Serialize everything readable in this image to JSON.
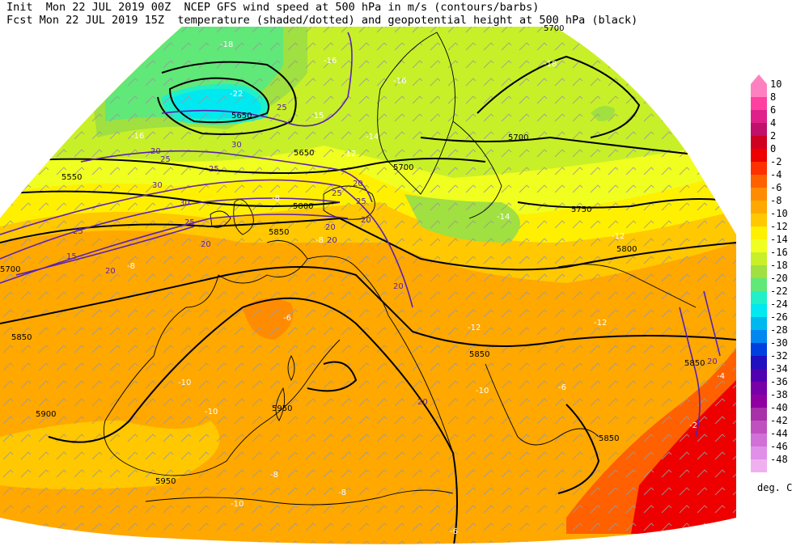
{
  "header": {
    "line1": "Init  Mon 22 JUL 2019 00Z  NCEP GFS wind speed at 500 hPa in m/s (contours/barbs)",
    "line2": "Fcst Mon 22 JUL 2019 15Z  temperature (shaded/dotted) and geopotential height at 500 hPa (black)"
  },
  "legend": {
    "labels": [
      "10",
      "8",
      "6",
      "4",
      "2",
      "0",
      "-2",
      "-4",
      "-6",
      "-8",
      "-10",
      "-12",
      "-14",
      "-16",
      "-18",
      "-20",
      "-22",
      "-24",
      "-26",
      "-28",
      "-30",
      "-32",
      "-34",
      "-36",
      "-38",
      "-40",
      "-42",
      "-44",
      "-46",
      "-48"
    ],
    "colors": [
      "#ff80c0",
      "#ff40a0",
      "#e0208a",
      "#c0106a",
      "#d00020",
      "#ee0000",
      "#ff3000",
      "#ff6000",
      "#ff8c00",
      "#ffa800",
      "#ffc800",
      "#fff000",
      "#f0ff20",
      "#c8f028",
      "#a0e040",
      "#60e878",
      "#20f0c8",
      "#00e8f0",
      "#00b8f0",
      "#0088f0",
      "#0040e0",
      "#2010c0",
      "#5000b0",
      "#7800a8",
      "#9000a0",
      "#a830a8",
      "#c050c0",
      "#d070d8",
      "#e090e8",
      "#f0b0f0"
    ],
    "units": "deg. C"
  },
  "map": {
    "height_labels": [
      "5700",
      "5550",
      "5650",
      "5700",
      "5700",
      "5700",
      "5750",
      "5800",
      "5850",
      "5800",
      "5850",
      "5900",
      "5950",
      "5950",
      "5850",
      "5850",
      "5850",
      "5650"
    ],
    "temp_labels": [
      "-18",
      "-22",
      "-16",
      "-16",
      "-15",
      "-16",
      "-18",
      "-14",
      "-12",
      "-14",
      "-12",
      "-8",
      "-6",
      "-8",
      "-10",
      "-10",
      "-10",
      "-8",
      "-8",
      "-6",
      "-4",
      "-2",
      "-6",
      "-8",
      "-12",
      "-10",
      "-12"
    ],
    "wind_labels": [
      "25",
      "20",
      "30",
      "25",
      "30",
      "25",
      "30",
      "25",
      "20",
      "25",
      "15",
      "20",
      "25",
      "20",
      "20",
      "20",
      "20",
      "20",
      "20",
      "25",
      "20"
    ]
  }
}
